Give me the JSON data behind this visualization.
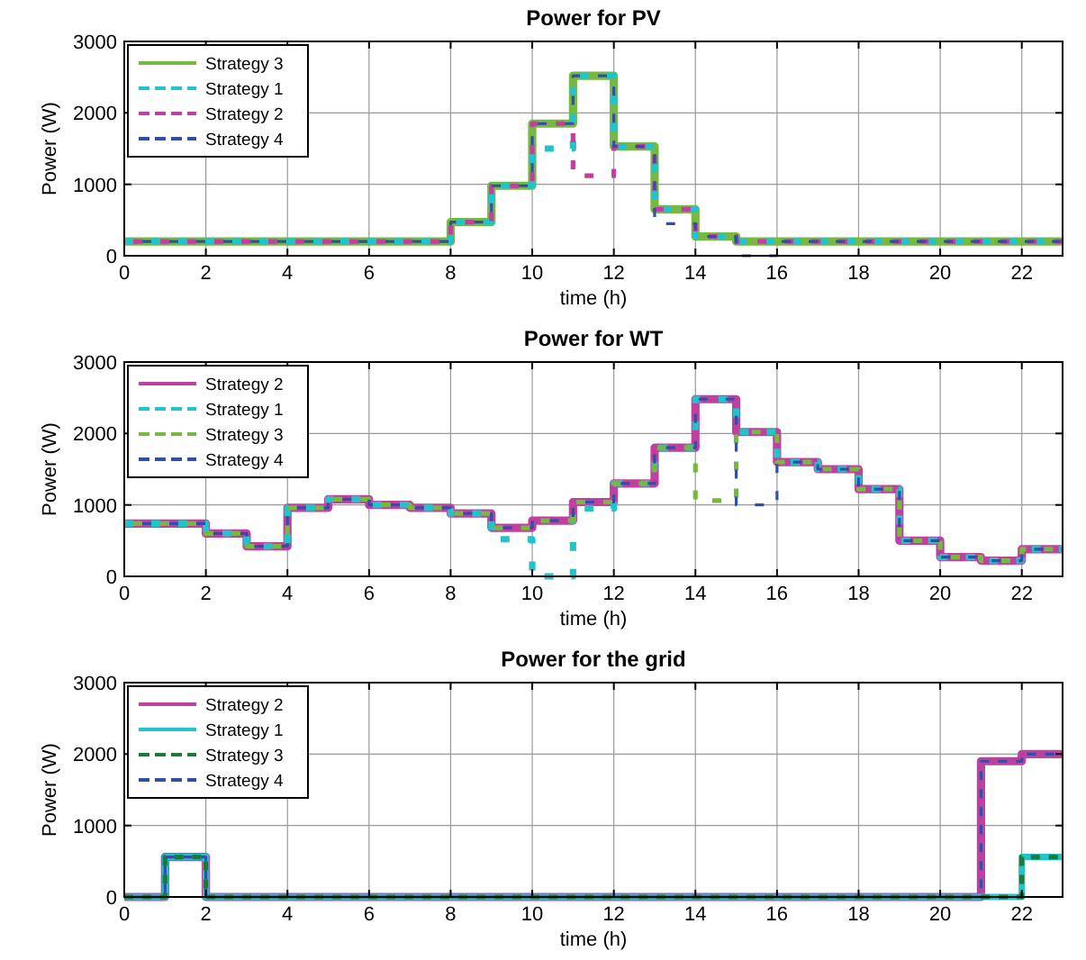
{
  "chart_data": [
    {
      "type": "step",
      "title": "Power for PV",
      "xlabel": "time (h)",
      "ylabel": "Power (W)",
      "x": [
        0,
        1,
        2,
        3,
        4,
        5,
        6,
        7,
        8,
        9,
        10,
        11,
        12,
        13,
        14,
        15,
        16,
        17,
        18,
        19,
        20,
        21,
        22,
        23
      ],
      "xlim": [
        0,
        23
      ],
      "xticks": [
        0,
        2,
        4,
        6,
        8,
        10,
        12,
        14,
        16,
        18,
        20,
        22
      ],
      "ylim": [
        0,
        3000
      ],
      "yticks": [
        0,
        1000,
        2000,
        3000
      ],
      "grid": true,
      "legend": "top left",
      "series": [
        {
          "name": "Strategy 3",
          "color": "#77b843",
          "line_style": "solid",
          "values": [
            200,
            200,
            200,
            200,
            200,
            200,
            200,
            200,
            470,
            980,
            1850,
            2520,
            1530,
            650,
            270,
            200,
            200,
            200,
            200,
            200,
            200,
            200,
            200,
            200
          ]
        },
        {
          "name": "Strategy 1",
          "color": "#22c4cc",
          "line_style": "dashed",
          "values": [
            200,
            200,
            200,
            200,
            200,
            200,
            200,
            200,
            470,
            980,
            1500,
            2520,
            1530,
            650,
            270,
            200,
            200,
            200,
            200,
            200,
            200,
            200,
            200,
            200
          ]
        },
        {
          "name": "Strategy 2",
          "color": "#c040a0",
          "line_style": "dashed",
          "values": [
            200,
            200,
            200,
            200,
            200,
            200,
            200,
            200,
            470,
            980,
            1850,
            1120,
            1530,
            650,
            270,
            200,
            200,
            200,
            200,
            200,
            200,
            200,
            200,
            200
          ]
        },
        {
          "name": "Strategy 4",
          "color": "#2f4fa8",
          "line_style": "dashed",
          "values": [
            200,
            200,
            200,
            200,
            200,
            200,
            200,
            200,
            470,
            980,
            1850,
            2520,
            1530,
            450,
            270,
            0,
            200,
            200,
            200,
            200,
            200,
            200,
            200,
            200
          ]
        }
      ]
    },
    {
      "type": "step",
      "title": "Power for WT",
      "xlabel": "time (h)",
      "ylabel": "Power (W)",
      "x": [
        0,
        1,
        2,
        3,
        4,
        5,
        6,
        7,
        8,
        9,
        10,
        11,
        12,
        13,
        14,
        15,
        16,
        17,
        18,
        19,
        20,
        21,
        22,
        23
      ],
      "xlim": [
        0,
        23
      ],
      "xticks": [
        0,
        2,
        4,
        6,
        8,
        10,
        12,
        14,
        16,
        18,
        20,
        22
      ],
      "ylim": [
        0,
        3000
      ],
      "yticks": [
        0,
        1000,
        2000,
        3000
      ],
      "grid": true,
      "legend": "top left",
      "series": [
        {
          "name": "Strategy 2",
          "color": "#c040a0",
          "line_style": "solid",
          "values": [
            740,
            740,
            600,
            420,
            960,
            1080,
            1000,
            960,
            880,
            680,
            780,
            1040,
            1300,
            1800,
            2480,
            2020,
            1600,
            1500,
            1220,
            500,
            270,
            220,
            380,
            380
          ]
        },
        {
          "name": "Strategy 1",
          "color": "#22c4cc",
          "line_style": "dashed",
          "values": [
            740,
            740,
            600,
            420,
            960,
            1080,
            1000,
            960,
            880,
            520,
            0,
            950,
            1300,
            1800,
            2480,
            2020,
            1600,
            1500,
            1220,
            500,
            270,
            220,
            380,
            380
          ]
        },
        {
          "name": "Strategy 3",
          "color": "#77b843",
          "line_style": "dashed",
          "values": [
            740,
            740,
            600,
            420,
            960,
            1080,
            1000,
            960,
            880,
            680,
            780,
            1040,
            1300,
            1800,
            1060,
            2020,
            1600,
            1500,
            1220,
            500,
            270,
            220,
            380,
            380
          ]
        },
        {
          "name": "Strategy 4",
          "color": "#2f4fa8",
          "line_style": "dashed",
          "values": [
            740,
            740,
            600,
            420,
            960,
            1080,
            1000,
            960,
            880,
            680,
            780,
            1040,
            1300,
            1800,
            2480,
            1000,
            1600,
            1500,
            1220,
            500,
            270,
            220,
            380,
            380
          ]
        }
      ]
    },
    {
      "type": "step",
      "title": "Power for the grid",
      "xlabel": "time (h)",
      "ylabel": "Power (W)",
      "x": [
        0,
        1,
        2,
        3,
        4,
        5,
        6,
        7,
        8,
        9,
        10,
        11,
        12,
        13,
        14,
        15,
        16,
        17,
        18,
        19,
        20,
        21,
        22,
        23
      ],
      "xlim": [
        0,
        23
      ],
      "xticks": [
        0,
        2,
        4,
        6,
        8,
        10,
        12,
        14,
        16,
        18,
        20,
        22
      ],
      "ylim": [
        0,
        3000
      ],
      "yticks": [
        0,
        1000,
        2000,
        3000
      ],
      "grid": true,
      "legend": "top left",
      "series": [
        {
          "name": "Strategy 2",
          "color": "#c040a0",
          "line_style": "solid",
          "values": [
            0,
            560,
            0,
            0,
            0,
            0,
            0,
            0,
            0,
            0,
            0,
            0,
            0,
            0,
            0,
            0,
            0,
            0,
            0,
            0,
            0,
            1900,
            2000,
            2000
          ]
        },
        {
          "name": "Strategy 1",
          "color": "#22c4cc",
          "line_style": "solid",
          "values": [
            0,
            560,
            0,
            0,
            0,
            0,
            0,
            0,
            0,
            0,
            0,
            0,
            0,
            0,
            0,
            0,
            0,
            0,
            0,
            0,
            0,
            0,
            560,
            560
          ]
        },
        {
          "name": "Strategy 3",
          "color": "#1a7a3a",
          "line_style": "dashed",
          "values": [
            0,
            560,
            0,
            0,
            0,
            0,
            0,
            0,
            0,
            0,
            0,
            0,
            0,
            0,
            0,
            0,
            0,
            0,
            0,
            0,
            0,
            0,
            560,
            560
          ]
        },
        {
          "name": "Strategy 4",
          "color": "#2f4fa8",
          "line_style": "dashed",
          "values": [
            0,
            560,
            0,
            0,
            0,
            0,
            0,
            0,
            0,
            0,
            0,
            0,
            0,
            0,
            0,
            0,
            0,
            0,
            0,
            0,
            0,
            1900,
            2000,
            2000
          ]
        }
      ]
    }
  ]
}
